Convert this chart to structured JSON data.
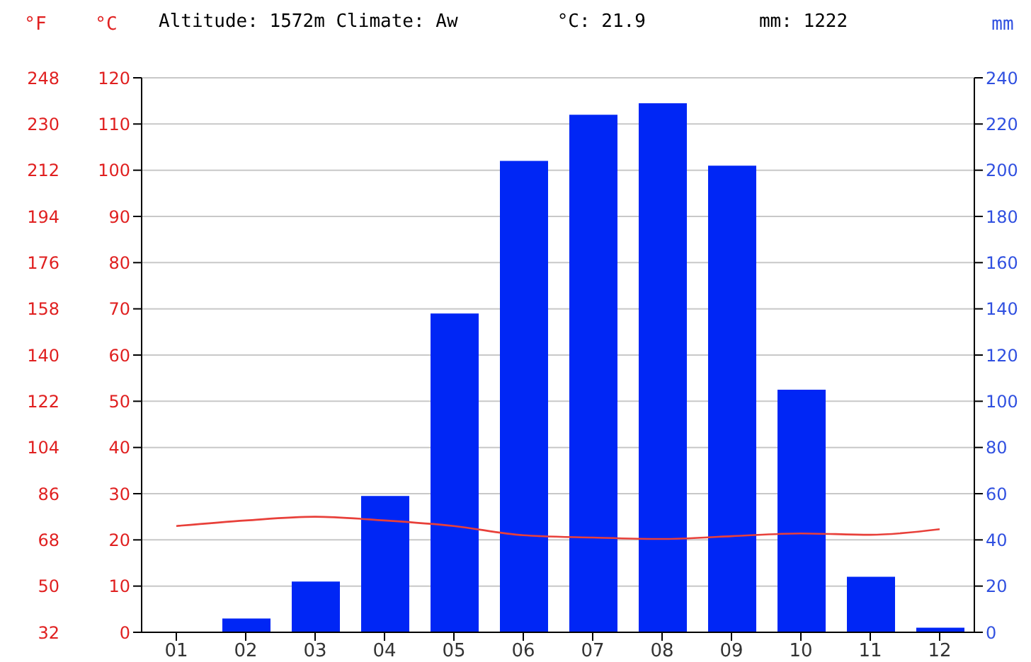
{
  "chart_data": {
    "type": "bar",
    "title": "Altitude: 1572m Climate: Aw",
    "annotations": [
      "°C: 21.9",
      "mm: 1222"
    ],
    "categories": [
      "01",
      "02",
      "03",
      "04",
      "05",
      "06",
      "07",
      "08",
      "09",
      "10",
      "11",
      "12"
    ],
    "series": [
      {
        "axis": "y2",
        "color": "#0026f5",
        "values": [
          0,
          6,
          22,
          59,
          138,
          204,
          224,
          229,
          202,
          105,
          24,
          2
        ]
      },
      {
        "type": "line",
        "axis": "y",
        "color": "#e8403a",
        "values": [
          23,
          24.2,
          25,
          24.2,
          23,
          21,
          20.5,
          20.2,
          20.8,
          21.4,
          21.1,
          22.3
        ]
      }
    ],
    "ylabel": "°C",
    "y2label": "mm",
    "y3label": "°F",
    "ylim": [
      0,
      120
    ],
    "yticks": [
      0,
      10,
      20,
      30,
      40,
      50,
      60,
      70,
      80,
      90,
      100,
      110,
      120
    ],
    "y2lim": [
      0,
      240
    ],
    "y2ticks": [
      0,
      20,
      40,
      60,
      80,
      100,
      120,
      140,
      160,
      180,
      200,
      220,
      240
    ],
    "y3lim": [
      32,
      248
    ],
    "y3ticks": [
      32,
      50,
      68,
      86,
      104,
      122,
      140,
      158,
      176,
      194,
      212,
      230,
      248
    ],
    "grid": "y",
    "marker": "none",
    "line_style": "solid"
  }
}
